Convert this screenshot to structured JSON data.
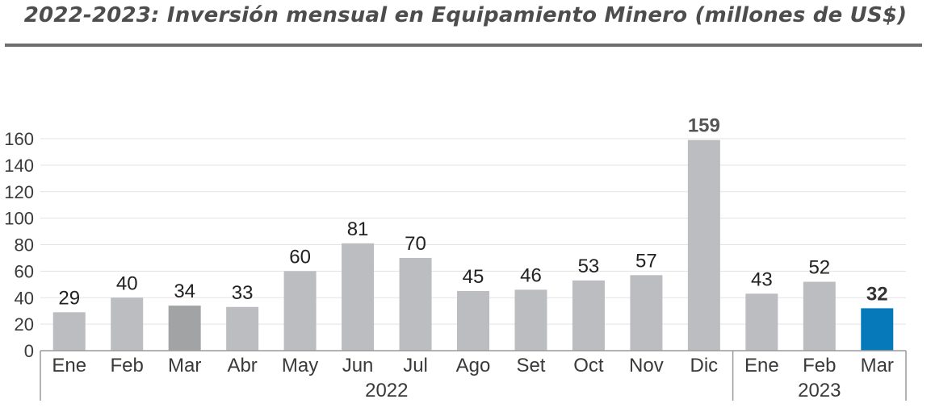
{
  "title": "2022-2023: Inversión mensual en Equipamiento Minero (millones de US$)",
  "chart_data": {
    "type": "bar",
    "title": "2022-2023: Inversión mensual en Equipamiento Minero (millones de US$)",
    "xlabel": "",
    "ylabel": "",
    "ylim": [
      0,
      160
    ],
    "yticks": [
      0,
      20,
      40,
      60,
      80,
      100,
      120,
      140,
      160
    ],
    "grid": true,
    "legend": "none",
    "categories": [
      "Ene",
      "Feb",
      "Mar",
      "Abr",
      "May",
      "Jun",
      "Jul",
      "Ago",
      "Set",
      "Oct",
      "Nov",
      "Dic",
      "Ene",
      "Feb",
      "Mar"
    ],
    "values": [
      29,
      40,
      34,
      33,
      60,
      81,
      70,
      45,
      46,
      53,
      57,
      159,
      43,
      52,
      32
    ],
    "groups": [
      {
        "label": "2022",
        "start": 0,
        "end": 11
      },
      {
        "label": "2023",
        "start": 12,
        "end": 14
      }
    ],
    "colors": {
      "default": "#bcbdc0",
      "highlight_prev": "#a2a3a5",
      "current": "#0579b9"
    },
    "bar_styles": [
      "default",
      "default",
      "highlight_prev",
      "default",
      "default",
      "default",
      "default",
      "default",
      "default",
      "default",
      "default",
      "default",
      "default",
      "default",
      "current"
    ],
    "label_styles": [
      "normal",
      "normal",
      "normal",
      "normal",
      "normal",
      "normal",
      "normal",
      "normal",
      "normal",
      "normal",
      "normal",
      "bold",
      "normal",
      "normal",
      "bolddark"
    ]
  }
}
